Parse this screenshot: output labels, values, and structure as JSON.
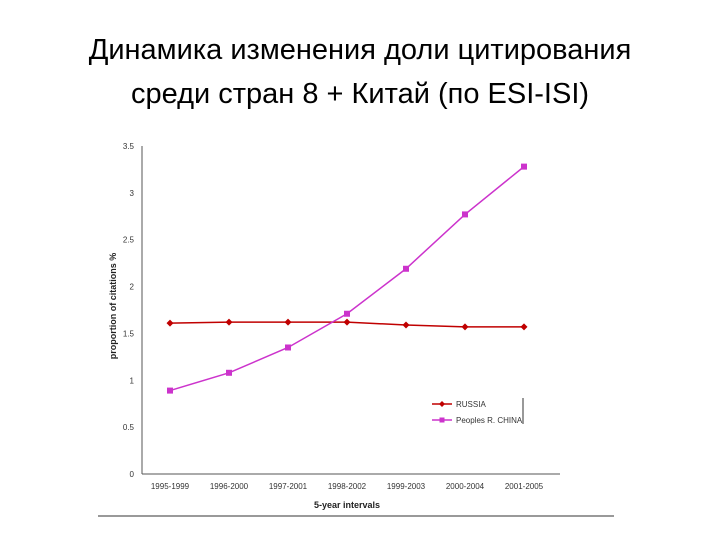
{
  "slide": {
    "title_line1": "Динамика изменения доли цитирования",
    "title_line2": "среди стран 8 + Китай (по ESI-ISI)"
  },
  "chart_data": {
    "type": "line",
    "title": "",
    "xlabel": "5-year intervals",
    "ylabel": "proportion of citations %",
    "categories": [
      "1995-1999",
      "1996-2000",
      "1997-2001",
      "1998-2002",
      "1999-2003",
      "2000-2004",
      "2001-2005"
    ],
    "ylim": [
      0,
      3.5
    ],
    "yticks": [
      0,
      0.5,
      1,
      1.5,
      2,
      2.5,
      3,
      3.5
    ],
    "ytick_labels": [
      "0",
      "0.5",
      "1",
      "1.5",
      "2",
      "2.5",
      "3",
      "3.5"
    ],
    "grid": false,
    "legend_position": "bottom-right",
    "series": [
      {
        "name": "RUSSIA",
        "values": [
          1.61,
          1.62,
          1.62,
          1.62,
          1.59,
          1.57,
          1.57
        ],
        "color": "#c00000",
        "marker": "diamond"
      },
      {
        "name": "Peoples R. CHINA",
        "values": [
          0.89,
          1.08,
          1.35,
          1.71,
          2.19,
          2.77,
          3.28
        ],
        "color": "#cc33cc",
        "marker": "square"
      }
    ]
  }
}
